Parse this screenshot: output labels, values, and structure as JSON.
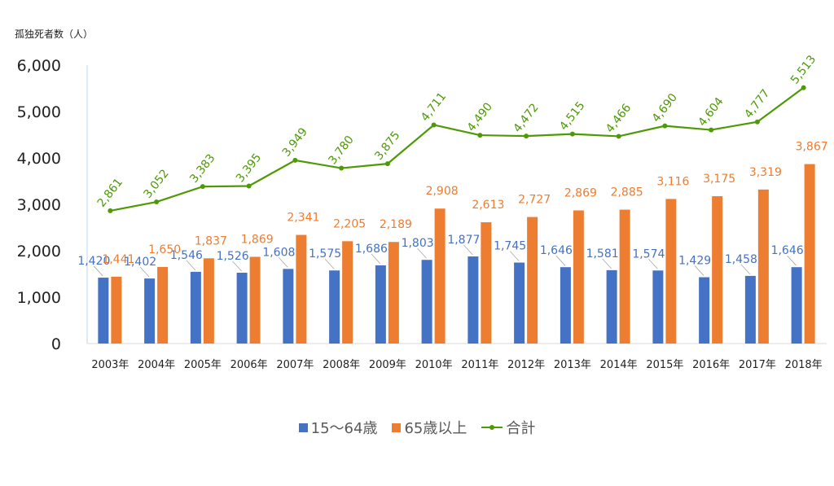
{
  "chart_data": {
    "type": "bar",
    "title": "",
    "ylabel": "孤独死者数（人）",
    "xlabel": "",
    "ylim": [
      0,
      6000
    ],
    "yticks": [
      "0",
      "1,000",
      "2,000",
      "3,000",
      "4,000",
      "5,000",
      "6,000"
    ],
    "grid": false,
    "legend_position": "bottom",
    "categories": [
      "2003年",
      "2004年",
      "2005年",
      "2006年",
      "2007年",
      "2008年",
      "2009年",
      "2010年",
      "2011年",
      "2012年",
      "2013年",
      "2014年",
      "2015年",
      "2016年",
      "2017年",
      "2018年"
    ],
    "series": [
      {
        "name": "15～64歳",
        "type": "bar",
        "color": "#4472C4",
        "values": [
          1420,
          1402,
          1546,
          1526,
          1608,
          1575,
          1686,
          1803,
          1877,
          1745,
          1646,
          1581,
          1574,
          1429,
          1458,
          1646
        ],
        "labels": [
          "1,420",
          "1,402",
          "1,546",
          "1,526",
          "1,608",
          "1,575",
          "1,686",
          "1,803",
          "1,877",
          "1,745",
          "1,646",
          "1,581",
          "1,574",
          "1,429",
          "1,458",
          "1,646"
        ]
      },
      {
        "name": "65歳以上",
        "type": "bar",
        "color": "#ED7D31",
        "values": [
          1441,
          1650,
          1837,
          1869,
          2341,
          2205,
          2189,
          2908,
          2613,
          2727,
          2869,
          2885,
          3116,
          3175,
          3319,
          3867
        ],
        "labels": [
          "1,441",
          "1,650",
          "1,837",
          "1,869",
          "2,341",
          "2,205",
          "2,189",
          "2,908",
          "2,613",
          "2,727",
          "2,869",
          "2,885",
          "3,116",
          "3,175",
          "3,319",
          "3,867"
        ]
      },
      {
        "name": "合計",
        "type": "line",
        "color": "#4E9A06",
        "values": [
          2861,
          3052,
          3383,
          3395,
          3949,
          3780,
          3875,
          4711,
          4490,
          4472,
          4515,
          4466,
          4690,
          4604,
          4777,
          5513
        ],
        "labels": [
          "2,861",
          "3,052",
          "3,383",
          "3,395",
          "3,949",
          "3,780",
          "3,875",
          "4,711",
          "4,490",
          "4,472",
          "4,515",
          "4,466",
          "4,690",
          "4,604",
          "4,777",
          "5,513"
        ]
      }
    ]
  }
}
